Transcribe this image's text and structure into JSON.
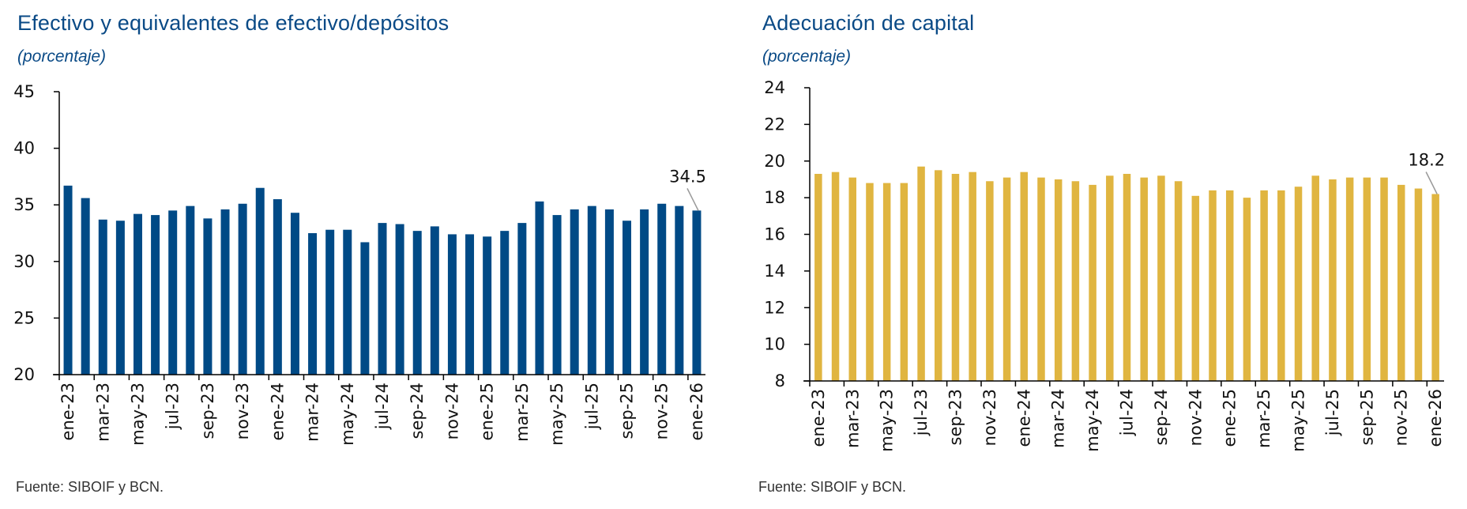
{
  "chart_data": [
    {
      "type": "bar",
      "title": "Efectivo y equivalentes de efectivo/depósitos",
      "subtitle": "(porcentaje)",
      "xlabel": "",
      "ylabel": "",
      "ylim": [
        20,
        45
      ],
      "yticks": [
        20,
        25,
        30,
        35,
        40,
        45
      ],
      "grid": false,
      "legend": "none",
      "color": "#004a86",
      "categories": [
        "ene-23",
        "feb-23",
        "mar-23",
        "abr-23",
        "may-23",
        "jun-23",
        "jul-23",
        "ago-23",
        "sep-23",
        "oct-23",
        "nov-23",
        "dic-23",
        "ene-24",
        "feb-24",
        "mar-24",
        "abr-24",
        "may-24",
        "jun-24",
        "jul-24",
        "ago-24",
        "sep-24",
        "oct-24",
        "nov-24",
        "dic-24",
        "ene-25",
        "feb-25",
        "mar-25",
        "abr-25",
        "may-25",
        "jun-25",
        "jul-25",
        "ago-25",
        "sep-25",
        "oct-25",
        "nov-25",
        "dic-25",
        "ene-26"
      ],
      "tick_labels": [
        "ene-23",
        "mar-23",
        "may-23",
        "jul-23",
        "sep-23",
        "nov-23",
        "ene-24",
        "mar-24",
        "may-24",
        "jul-24",
        "sep-24",
        "nov-24",
        "ene-25",
        "mar-25",
        "may-25",
        "jul-25",
        "sep-25",
        "nov-25",
        "ene-26"
      ],
      "values": [
        36.7,
        35.6,
        33.7,
        33.6,
        34.2,
        34.1,
        34.5,
        34.9,
        33.8,
        34.6,
        35.1,
        36.5,
        35.5,
        34.3,
        32.5,
        32.8,
        32.8,
        31.7,
        33.4,
        33.3,
        32.7,
        33.1,
        32.4,
        32.4,
        32.2,
        32.7,
        33.4,
        35.3,
        34.1,
        34.6,
        34.9,
        34.6,
        33.6,
        34.6,
        35.1,
        34.9,
        34.5
      ],
      "annotation": {
        "label": "34.5",
        "category": "ene-26"
      },
      "source": "Fuente: SIBOIF y BCN."
    },
    {
      "type": "bar",
      "title": "Adecuación de capital",
      "subtitle": "(porcentaje)",
      "xlabel": "",
      "ylabel": "",
      "ylim": [
        8,
        24
      ],
      "yticks": [
        8,
        10,
        12,
        14,
        16,
        18,
        20,
        22,
        24
      ],
      "grid": false,
      "legend": "none",
      "color": "#e0b540",
      "categories": [
        "ene-23",
        "feb-23",
        "mar-23",
        "abr-23",
        "may-23",
        "jun-23",
        "jul-23",
        "ago-23",
        "sep-23",
        "oct-23",
        "nov-23",
        "dic-23",
        "ene-24",
        "feb-24",
        "mar-24",
        "abr-24",
        "may-24",
        "jun-24",
        "jul-24",
        "ago-24",
        "sep-24",
        "oct-24",
        "nov-24",
        "dic-24",
        "ene-25",
        "feb-25",
        "mar-25",
        "abr-25",
        "may-25",
        "jun-25",
        "jul-25",
        "ago-25",
        "sep-25",
        "oct-25",
        "nov-25",
        "dic-25",
        "ene-26"
      ],
      "tick_labels": [
        "ene-23",
        "mar-23",
        "may-23",
        "jul-23",
        "sep-23",
        "nov-23",
        "ene-24",
        "mar-24",
        "may-24",
        "jul-24",
        "sep-24",
        "nov-24",
        "ene-25",
        "mar-25",
        "may-25",
        "jul-25",
        "sep-25",
        "nov-25",
        "ene-26"
      ],
      "values": [
        19.3,
        19.4,
        19.1,
        18.8,
        18.8,
        18.8,
        19.7,
        19.5,
        19.3,
        19.4,
        18.9,
        19.1,
        19.4,
        19.1,
        19.0,
        18.9,
        18.7,
        19.2,
        19.3,
        19.1,
        19.2,
        18.9,
        18.1,
        18.4,
        18.4,
        18.0,
        18.4,
        18.4,
        18.6,
        19.2,
        19.0,
        19.1,
        19.1,
        19.1,
        18.7,
        18.5,
        18.2
      ],
      "annotation": {
        "label": "18.2",
        "category": "ene-26"
      },
      "source": "Fuente: SIBOIF y BCN."
    }
  ]
}
